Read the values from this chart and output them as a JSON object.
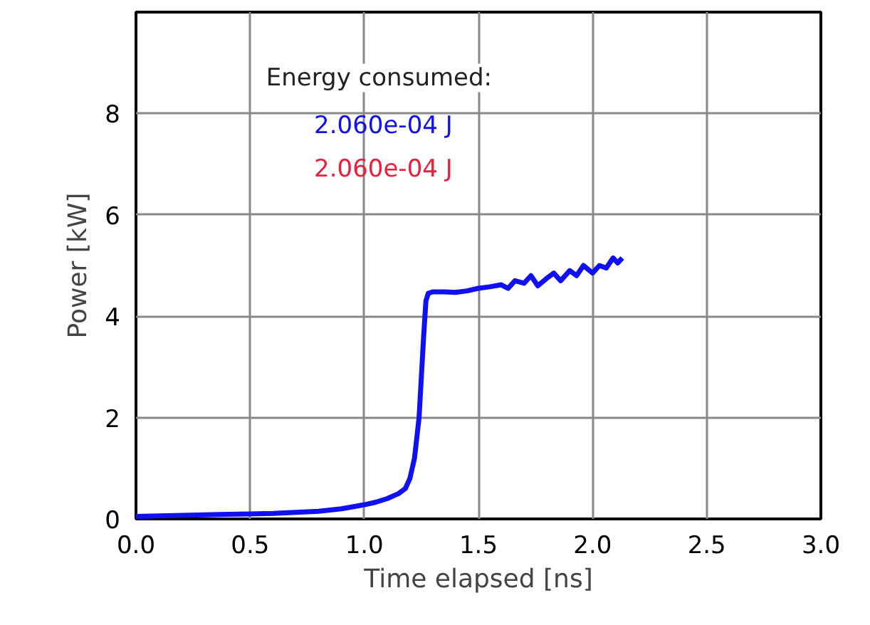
{
  "chart_data": {
    "type": "line",
    "xlabel": "Time elapsed [ns]",
    "ylabel": "Power [kW]",
    "xlim": [
      0,
      3
    ],
    "ylim": [
      0,
      10
    ],
    "xticks": [
      {
        "value": 0,
        "label": "0.0"
      },
      0.5,
      {
        "value": 1,
        "label": "1.0"
      },
      1.5,
      {
        "value": 2,
        "label": "2.0"
      },
      2.5,
      {
        "value": 3,
        "label": "3.0"
      }
    ],
    "yticks": [
      0,
      2,
      4,
      6,
      8
    ],
    "grid": true,
    "marker": "none",
    "line_style": "solid",
    "annotations": [
      "Energy consumed:",
      "2.060e-04 J",
      "2.060e-04 J"
    ],
    "series": [
      {
        "color": "#1010f0",
        "x": [
          0,
          0.1,
          0.2,
          0.3,
          0.4,
          0.5,
          0.6,
          0.7,
          0.8,
          0.9,
          1.0,
          1.05,
          1.1,
          1.15,
          1.18,
          1.2,
          1.22,
          1.24,
          1.25,
          1.26,
          1.27,
          1.28,
          1.3,
          1.35,
          1.4,
          1.45,
          1.5,
          1.55,
          1.6,
          1.63,
          1.66,
          1.7,
          1.73,
          1.76,
          1.8,
          1.83,
          1.86,
          1.9,
          1.93,
          1.96,
          2.0,
          2.03,
          2.06,
          2.09,
          2.11,
          2.13
        ],
        "values": [
          0.05,
          0.06,
          0.07,
          0.08,
          0.09,
          0.1,
          0.11,
          0.13,
          0.15,
          0.2,
          0.28,
          0.33,
          0.4,
          0.5,
          0.6,
          0.8,
          1.2,
          2.0,
          2.8,
          3.6,
          4.3,
          4.45,
          4.48,
          4.48,
          4.47,
          4.5,
          4.55,
          4.58,
          4.62,
          4.55,
          4.7,
          4.65,
          4.8,
          4.6,
          4.75,
          4.85,
          4.7,
          4.9,
          4.8,
          5.0,
          4.85,
          5.0,
          4.95,
          5.15,
          5.05,
          5.15
        ]
      }
    ]
  }
}
